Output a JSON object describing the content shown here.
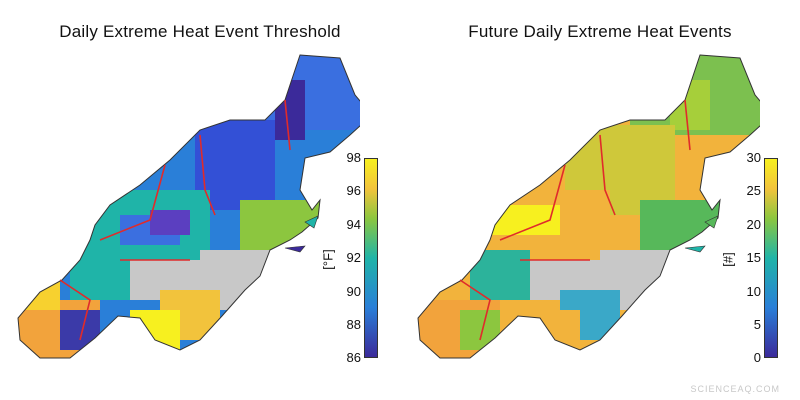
{
  "panels": [
    {
      "title": "Daily Extreme Heat Event Threshold",
      "colorbar": {
        "min": 86,
        "max": 98,
        "ticks": [
          "98",
          "96",
          "94",
          "92",
          "90",
          "88",
          "86"
        ],
        "unit": "[°F]"
      }
    },
    {
      "title": "Future Daily Extreme Heat Events",
      "colorbar": {
        "min": 0,
        "max": 30,
        "ticks": [
          "30",
          "25",
          "20",
          "15",
          "10",
          "5",
          "0"
        ],
        "unit": "[#]"
      }
    }
  ],
  "colors": {
    "low": "#3b2a9a",
    "mid_low": "#2a7fd8",
    "mid": "#1fb4a8",
    "mid_high": "#8cc63f",
    "high": "#f2c33c",
    "top": "#f7f01f",
    "no_data": "#c8c8c8",
    "border_highlight": "#e02b2b",
    "county_border": "#333333"
  },
  "watermark": "SCIENCEAQ.COM"
}
